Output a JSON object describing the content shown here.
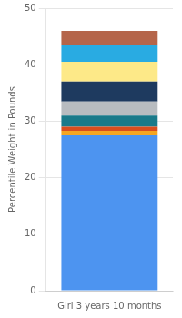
{
  "chart_data": {
    "type": "bar",
    "categories": [
      "Girl 3 years 10 months"
    ],
    "series": [
      {
        "color": "#4d94f0",
        "values": [
          27.5
        ]
      },
      {
        "color": "#f5a623",
        "values": [
          0.8
        ]
      },
      {
        "color": "#d94e1f",
        "values": [
          0.7
        ]
      },
      {
        "color": "#1a7a8a",
        "values": [
          2.0
        ]
      },
      {
        "color": "#b8bcc0",
        "values": [
          2.5
        ]
      },
      {
        "color": "#1e3a5f",
        "values": [
          3.5
        ]
      },
      {
        "color": "#fde988",
        "values": [
          3.5
        ]
      },
      {
        "color": "#29abe2",
        "values": [
          3.0
        ]
      },
      {
        "color": "#b5654a",
        "values": [
          2.5
        ]
      }
    ],
    "stacked": true,
    "ylabel": "Percentile Weight in Pounds",
    "ylim": [
      0,
      50
    ],
    "yticks": [
      0,
      10,
      20,
      30,
      40,
      50
    ],
    "grid": true
  }
}
